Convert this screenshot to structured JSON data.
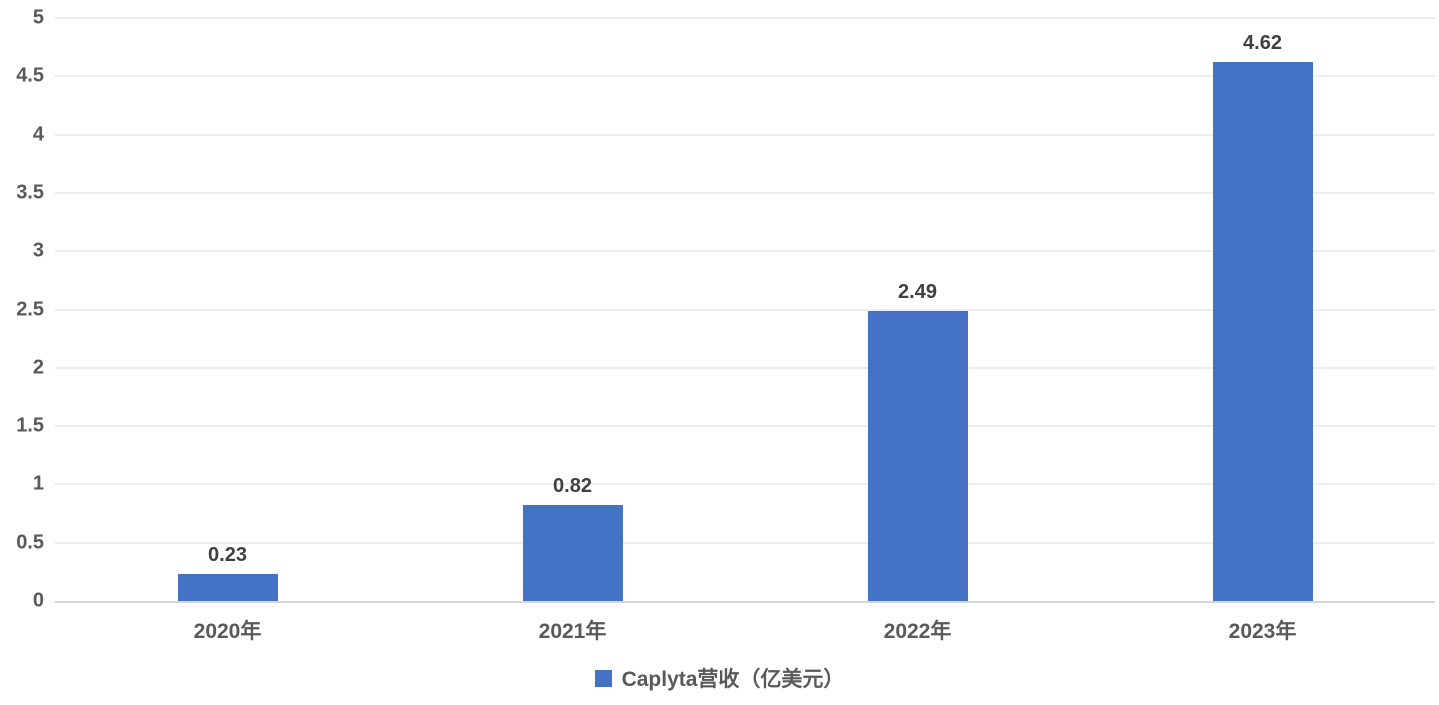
{
  "chart_data": {
    "type": "bar",
    "categories": [
      "2020年",
      "2021年",
      "2022年",
      "2023年"
    ],
    "values": [
      0.23,
      0.82,
      2.49,
      4.62
    ],
    "value_labels": [
      "0.23",
      "0.82",
      "2.49",
      "4.62"
    ],
    "title": "",
    "xlabel": "",
    "ylabel": "",
    "ylim": [
      0,
      5
    ],
    "ytick_step": 0.5,
    "ytick_labels": [
      "0",
      "0.5",
      "1",
      "1.5",
      "2",
      "2.5",
      "3",
      "3.5",
      "4",
      "4.5",
      "5"
    ],
    "grid": true,
    "legend": {
      "position": "bottom-center",
      "entries": [
        {
          "label": "Caplyta营收（亿美元）",
          "color": "#4472C4",
          "swatch": "square-icon"
        }
      ]
    },
    "colors": {
      "bar": "#4472C4",
      "gridline": "#EDEDED",
      "axis_line": "#D6D6D6",
      "tick_label": "#595959",
      "value_label": "#404040",
      "background": "#FFFFFF"
    }
  }
}
